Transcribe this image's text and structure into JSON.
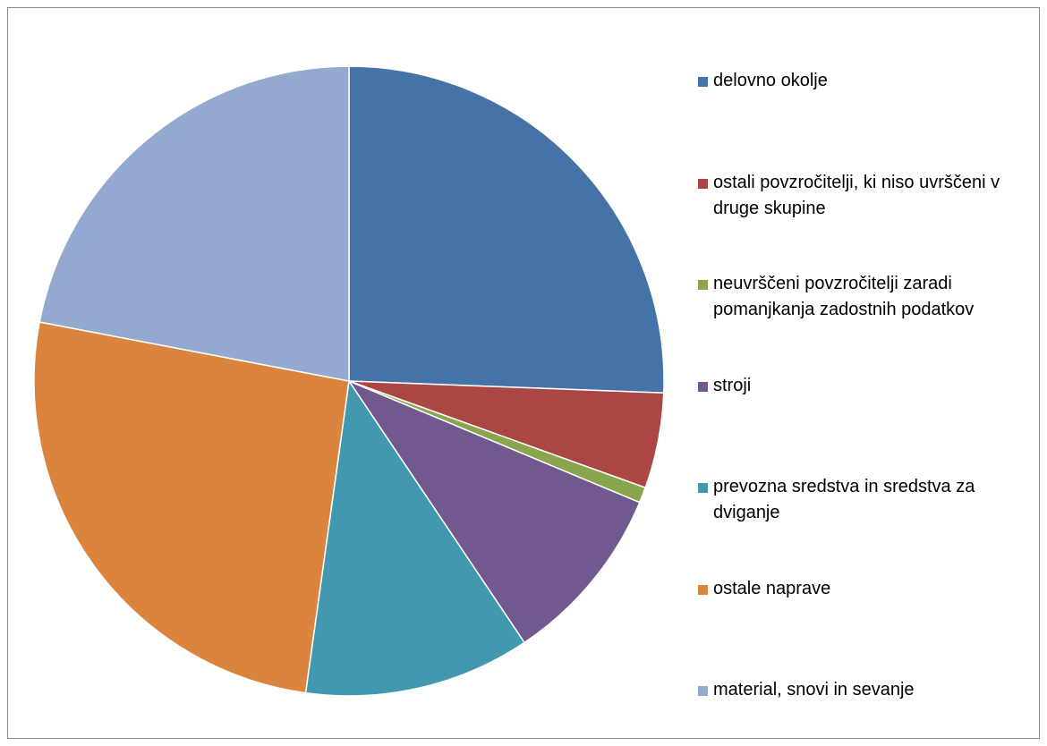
{
  "chart_data": {
    "type": "pie",
    "start_angle_deg": 0,
    "direction": "clockwise",
    "legend_position": "right",
    "slices": [
      {
        "label": "delovno okolje",
        "value": 25.6,
        "color": "#4572A7"
      },
      {
        "label": "ostali povzročitelji, ki niso uvrščeni v druge skupine",
        "value": 4.9,
        "color": "#AA4643"
      },
      {
        "label": "neuvrščeni povzročitelji zaradi pomanjkanja zadostnih podatkov",
        "value": 0.8,
        "color": "#89A54E"
      },
      {
        "label": "stroji",
        "value": 9.3,
        "color": "#71588F"
      },
      {
        "label": "prevozna sredstva in sredstva za dviganje",
        "value": 11.6,
        "color": "#4198AF"
      },
      {
        "label": "ostale naprave",
        "value": 25.8,
        "color": "#DB843D"
      },
      {
        "label": "material, snovi in sevanje",
        "value": 22.0,
        "color": "#93A9CF"
      }
    ]
  }
}
